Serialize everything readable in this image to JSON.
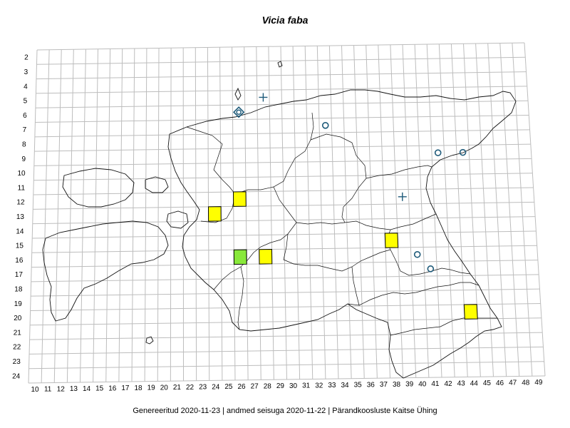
{
  "title": "Vicia faba",
  "footer": "Genereeritud 2020-11-23  |  andmed seisuga 2020-11-22  |  Pärandkoosluste Kaitse Ühing",
  "grid": {
    "columns": [
      "10",
      "11",
      "12",
      "13",
      "14",
      "15",
      "16",
      "17",
      "18",
      "19",
      "20",
      "21",
      "22",
      "23",
      "24",
      "25",
      "26",
      "27",
      "28",
      "29",
      "30",
      "31",
      "32",
      "33",
      "34",
      "35",
      "36",
      "37",
      "38",
      "39",
      "40",
      "41",
      "42",
      "43",
      "44",
      "45",
      "46",
      "47",
      "48",
      "49"
    ],
    "rows": [
      "2",
      "3",
      "4",
      "5",
      "6",
      "7",
      "8",
      "9",
      "10",
      "11",
      "12",
      "13",
      "14",
      "15",
      "16",
      "17",
      "18",
      "19",
      "20",
      "21",
      "22",
      "23",
      "24"
    ]
  },
  "colors": {
    "grid": "#bdbdbd",
    "outline": "#111111",
    "yellow": "#ffff00",
    "green": "#88e83a",
    "marker": "#1f5b7a"
  },
  "records": [
    {
      "type": "square-yellow",
      "col": 26,
      "row": 12
    },
    {
      "type": "square-yellow",
      "col": 24,
      "row": 13
    },
    {
      "type": "square-green",
      "col": 26,
      "row": 16
    },
    {
      "type": "square-yellow",
      "col": 28,
      "row": 16
    },
    {
      "type": "square-yellow",
      "col": 38,
      "row": 15
    },
    {
      "type": "square-yellow",
      "col": 44,
      "row": 20
    },
    {
      "type": "circle",
      "col": 33,
      "row": 7
    },
    {
      "type": "circle",
      "col": 42,
      "row": 9
    },
    {
      "type": "circle",
      "col": 44,
      "row": 9
    },
    {
      "type": "circle",
      "col": 40,
      "row": 16
    },
    {
      "type": "circle",
      "col": 41,
      "row": 17
    },
    {
      "type": "plus",
      "col": 28,
      "row": 5
    },
    {
      "type": "plus",
      "col": 39,
      "row": 12
    },
    {
      "type": "diamond",
      "col": 26,
      "row": 6
    }
  ]
}
